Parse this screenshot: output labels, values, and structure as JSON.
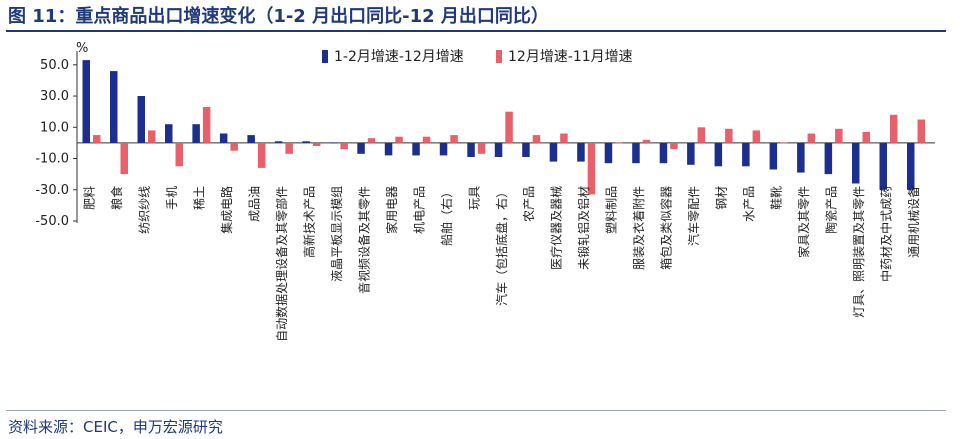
{
  "page": {
    "title": "图 11：重点商品出口增速变化（1-2 月出口同比-12 月出口同比）",
    "source": "资料来源：CEIC，申万宏源研究"
  },
  "colors": {
    "series1": "#1c2f8f",
    "series2": "#e8606a",
    "title": "#1f3a7a"
  },
  "chart_data": {
    "type": "bar",
    "title": "",
    "xlabel": "",
    "ylabel": "%",
    "ylim": [
      -50,
      55
    ],
    "yticks": [
      "50.0",
      "30.0",
      "10.0",
      "-10.0",
      "-30.0",
      "-50.0"
    ],
    "legend_position": "top",
    "grid": false,
    "categories": [
      "肥料",
      "粮食",
      "纺织纱线",
      "手机",
      "稀土",
      "集成电路",
      "成品油",
      "自动数据处理设备及其零部件",
      "高新技术产品",
      "液晶平板显示模组",
      "音视频设备及其零件",
      "家用电器",
      "机电产品",
      "船舶（右）",
      "玩具",
      "汽车（包括底盘，右）",
      "农产品",
      "医疗仪器及器械",
      "未锻轧铝及铝材",
      "塑料制品",
      "服装及衣着附件",
      "箱包及类似容器",
      "汽车零配件",
      "钢材",
      "水产品",
      "鞋靴",
      "家具及其零件",
      "陶瓷产品",
      "灯具、照明装置及其零件",
      "中药材及中式成药",
      "通用机械设备"
    ],
    "series": [
      {
        "name": "1-2月增速-12月增速",
        "values": [
          53,
          46,
          30,
          12,
          12,
          6,
          5,
          1,
          1,
          0,
          -7,
          -8,
          -8,
          -8,
          -9,
          -9,
          -9,
          -12,
          -12,
          -13,
          -13,
          -13,
          -14,
          -15,
          -15,
          -17,
          -19,
          -20,
          -26,
          -30,
          -30
        ]
      },
      {
        "name": "12月增速-11月增速",
        "values": [
          5,
          -20,
          8,
          -15,
          23,
          -5,
          -16,
          -7,
          -2,
          -4,
          3,
          4,
          4,
          5,
          -7,
          20,
          5,
          6,
          -33,
          0,
          2,
          -4,
          10,
          9,
          8,
          0,
          6,
          9,
          7,
          18,
          15
        ]
      }
    ]
  }
}
